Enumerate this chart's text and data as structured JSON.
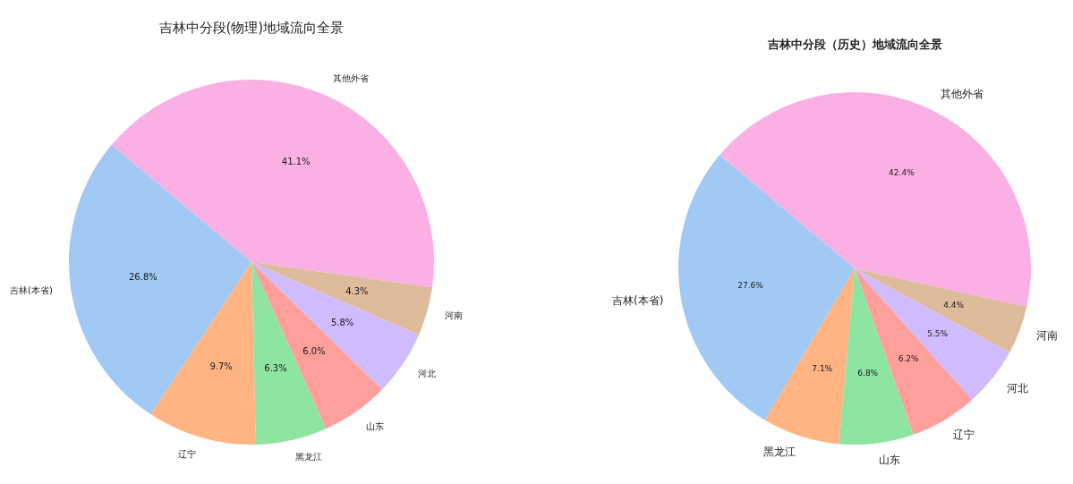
{
  "chart_data": [
    {
      "type": "pie",
      "title": "吉林中分段(物理)地域流向全景",
      "categories": [
        "其他外省",
        "河南",
        "河北",
        "山东",
        "黑龙江",
        "辽宁",
        "吉林(本省)"
      ],
      "values": [
        41.1,
        4.3,
        5.8,
        6.0,
        6.3,
        9.7,
        26.8
      ],
      "colors": [
        "#fab0e4",
        "#debb9b",
        "#d0bbff",
        "#ff9f9b",
        "#8de5a1",
        "#ffb482",
        "#a1c9f4"
      ],
      "value_labels": [
        "41.1%",
        "4.3%",
        "5.8%",
        "6.0%",
        "6.3%",
        "9.7%",
        "26.8%"
      ]
    },
    {
      "type": "pie",
      "title": "吉林中分段（历史）地域流向全景",
      "categories": [
        "其他外省",
        "河南",
        "河北",
        "辽宁",
        "山东",
        "黑龙江",
        "吉林(本省)"
      ],
      "values": [
        42.4,
        4.4,
        5.5,
        6.2,
        6.8,
        7.1,
        27.6
      ],
      "colors": [
        "#fab0e4",
        "#debb9b",
        "#d0bbff",
        "#ff9f9b",
        "#8de5a1",
        "#ffb482",
        "#a1c9f4"
      ],
      "value_labels": [
        "42.4%",
        "4.4%",
        "5.5%",
        "6.2%",
        "6.8%",
        "7.1%",
        "27.6%"
      ]
    }
  ]
}
